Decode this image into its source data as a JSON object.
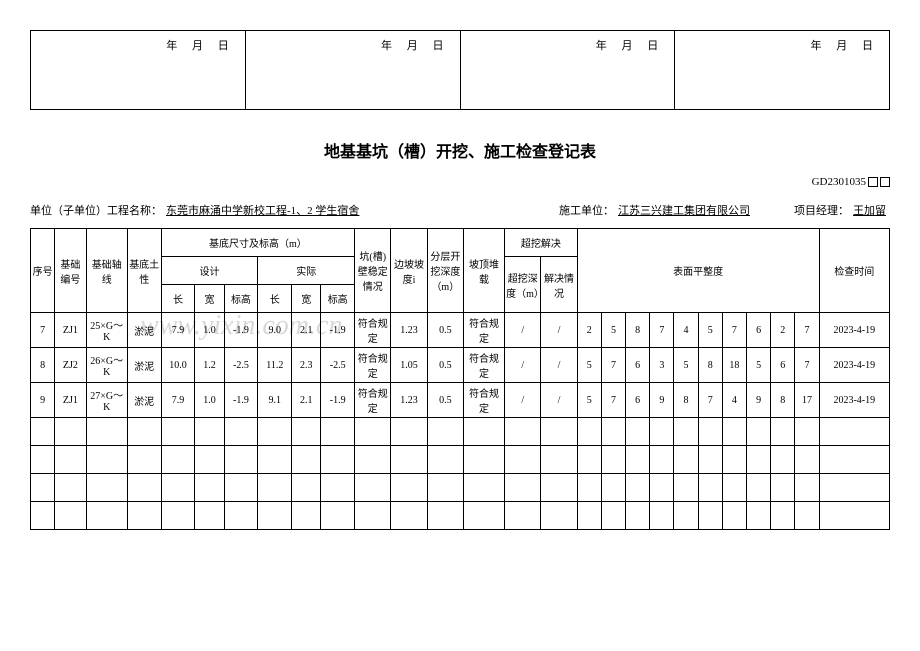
{
  "date_labels": {
    "year": "年",
    "month": "月",
    "day": "日"
  },
  "title": "地基基坑（槽）开挖、施工检查登记表",
  "code": "GD2301035",
  "meta": {
    "unit_label": "单位（子单位）工程名称：",
    "unit_value": "东莞市麻涌中学新校工程-1、2 学生宿舍",
    "contractor_label": "施工单位：",
    "contractor_value": "江苏三兴建工集团有限公司",
    "pm_label": "项目经理：",
    "pm_value": "王加留"
  },
  "headers": {
    "seq": "序号",
    "foundation_no": "基础编号",
    "axis": "基础轴线",
    "soil": "基底土性",
    "base_dim": "基底尺寸及标高（m）",
    "design": "设计",
    "actual": "实际",
    "len": "长",
    "wid": "宽",
    "elev": "标高",
    "wall_stable": "坑(槽)壁稳定情况",
    "slope": "边坡坡度i",
    "layer_depth": "分层开挖深度（m）",
    "top_load": "坡顶堆载",
    "over_excavate": "超挖解决",
    "over_depth": "超挖深度（m）",
    "solution": "解决情况",
    "flatness": "表面平整度",
    "check_time": "检查时间"
  },
  "rows": [
    {
      "seq": "7",
      "fno": "ZJ1",
      "axis": "25×G～K",
      "soil": "淤泥",
      "dl": "7.9",
      "dw": "1.0",
      "de": "-1.9",
      "al": "9.0",
      "aw": "2.1",
      "ae": "-1.9",
      "ws": "符合规定",
      "sl": "1.23",
      "ld": "0.5",
      "tl": "符合规定",
      "od": "/",
      "so": "/",
      "f": [
        "2",
        "5",
        "8",
        "7",
        "4",
        "5",
        "7",
        "6",
        "2",
        "7"
      ],
      "ct": "2023-4-19"
    },
    {
      "seq": "8",
      "fno": "ZJ2",
      "axis": "26×G～K",
      "soil": "淤泥",
      "dl": "10.0",
      "dw": "1.2",
      "de": "-2.5",
      "al": "11.2",
      "aw": "2.3",
      "ae": "-2.5",
      "ws": "符合规定",
      "sl": "1.05",
      "ld": "0.5",
      "tl": "符合规定",
      "od": "/",
      "so": "/",
      "f": [
        "5",
        "7",
        "6",
        "3",
        "5",
        "8",
        "18",
        "5",
        "6",
        "7"
      ],
      "ct": "2023-4-19"
    },
    {
      "seq": "9",
      "fno": "ZJ1",
      "axis": "27×G～K",
      "soil": "淤泥",
      "dl": "7.9",
      "dw": "1.0",
      "de": "-1.9",
      "al": "9.1",
      "aw": "2.1",
      "ae": "-1.9",
      "ws": "符合规定",
      "sl": "1.23",
      "ld": "0.5",
      "tl": "符合规定",
      "od": "/",
      "so": "/",
      "f": [
        "5",
        "7",
        "6",
        "9",
        "8",
        "7",
        "4",
        "9",
        "8",
        "17"
      ],
      "ct": "2023-4-19"
    }
  ],
  "watermark": "www.yixin.com.cn",
  "empty_rows": 4
}
